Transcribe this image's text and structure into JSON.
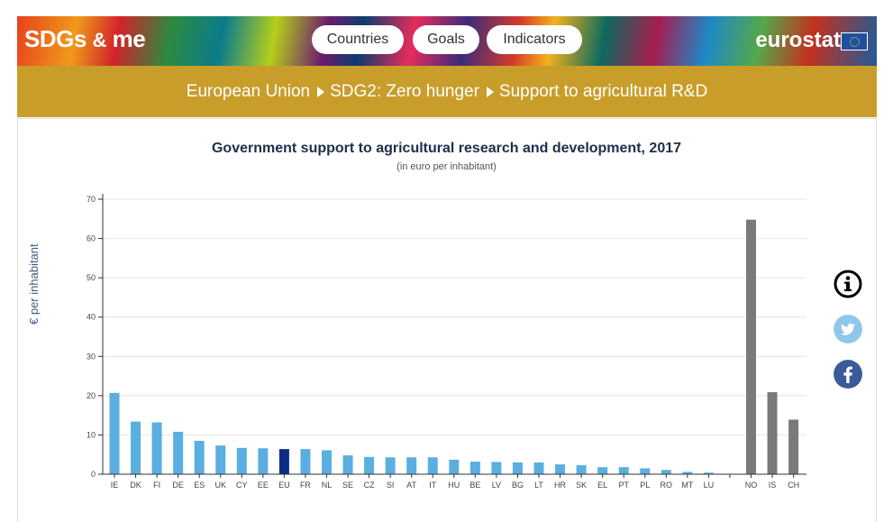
{
  "header": {
    "brand_main": "SDGs",
    "brand_amp": "&",
    "brand_me": "me",
    "nav": [
      "Countries",
      "Goals",
      "Indicators"
    ],
    "logo": "eurostat"
  },
  "breadcrumb": [
    "European Union",
    "SDG2: Zero hunger",
    "Support to agricultural R&D"
  ],
  "colors": {
    "eu_member": "#5aafe0",
    "eu_aggregate": "#0d2d84",
    "non_eu": "#7a7a7a",
    "gold": "#c89d2a"
  },
  "icons": [
    "info-icon",
    "twitter-icon",
    "facebook-icon"
  ],
  "chart_data": {
    "type": "bar",
    "title": "Government support to agricultural research and development, 2017",
    "subtitle": "(in euro per inhabitant)",
    "ylabel": "€ per inhabitant",
    "xlabel": "",
    "ylim": [
      0,
      70
    ],
    "yticks": [
      0,
      10,
      20,
      30,
      40,
      50,
      60,
      70
    ],
    "grid": true,
    "categories": [
      "IE",
      "DK",
      "FI",
      "DE",
      "ES",
      "UK",
      "CY",
      "EE",
      "EU",
      "FR",
      "NL",
      "SE",
      "CZ",
      "SI",
      "AT",
      "IT",
      "HU",
      "BE",
      "LV",
      "BG",
      "LT",
      "HR",
      "SK",
      "EL",
      "PT",
      "PL",
      "RO",
      "MT",
      "LU",
      "",
      "NO",
      "IS",
      "CH"
    ],
    "values": [
      20.7,
      13.4,
      13.2,
      10.8,
      8.5,
      7.3,
      6.7,
      6.6,
      6.4,
      6.4,
      6.1,
      4.8,
      4.4,
      4.3,
      4.3,
      4.3,
      3.7,
      3.2,
      3.1,
      3.0,
      3.0,
      2.5,
      2.3,
      1.8,
      1.8,
      1.5,
      1.1,
      0.6,
      0.4,
      null,
      64.8,
      20.9,
      13.9
    ],
    "groups": [
      "eu_member",
      "eu_member",
      "eu_member",
      "eu_member",
      "eu_member",
      "eu_member",
      "eu_member",
      "eu_member",
      "eu_aggregate",
      "eu_member",
      "eu_member",
      "eu_member",
      "eu_member",
      "eu_member",
      "eu_member",
      "eu_member",
      "eu_member",
      "eu_member",
      "eu_member",
      "eu_member",
      "eu_member",
      "eu_member",
      "eu_member",
      "eu_member",
      "eu_member",
      "eu_member",
      "eu_member",
      "eu_member",
      "eu_member",
      "gap",
      "non_eu",
      "non_eu",
      "non_eu"
    ]
  }
}
